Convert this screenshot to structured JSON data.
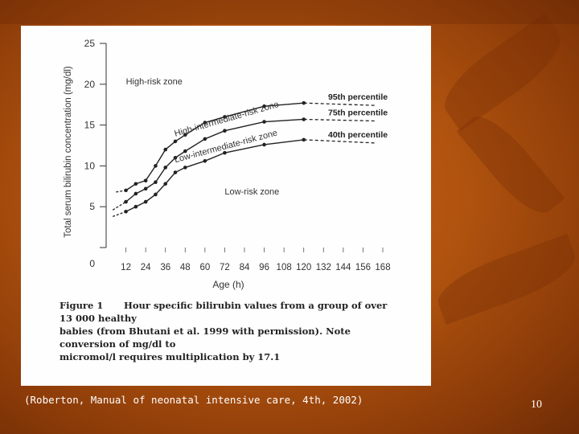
{
  "slide": {
    "citation": "(Roberton, Manual of neonatal intensive care, 4th, 2002)",
    "page_number": "10"
  },
  "figure": {
    "caption_label": "Figure 1",
    "caption_lines": [
      "Hour specific bilirubin values from a group of over 13 000 healthy",
      "babies (from Bhutani et al. 1999 with permission). Note conversion of mg/dl to",
      "micromol/l requires multiplication by 17.1"
    ]
  },
  "chart_data": {
    "type": "line",
    "title": "",
    "xlabel": "Age (h)",
    "ylabel": "Total serum bilirubin concentration (mg/dl)",
    "xlim": [
      0,
      168
    ],
    "ylim": [
      0,
      25
    ],
    "x_ticks": [
      12,
      24,
      36,
      48,
      60,
      72,
      84,
      96,
      108,
      120,
      132,
      144,
      156,
      168
    ],
    "x_tick_labels": [
      "12",
      "24",
      "36",
      "48",
      "60",
      "72",
      "84",
      "96",
      "108",
      "120",
      "132",
      "144",
      "156",
      "168"
    ],
    "y_ticks": [
      0,
      5,
      10,
      15,
      20,
      25
    ],
    "y_tick_labels": [
      "0",
      "5",
      "10",
      "15",
      "20",
      "25"
    ],
    "zone_labels": [
      {
        "text": "High-risk zone",
        "x": 12,
        "y": 20
      },
      {
        "text": "High-intermediate-risk zone",
        "x": 42,
        "y": 13.6,
        "angle": -16
      },
      {
        "text": "Low-intermediate-risk zone",
        "x": 42,
        "y": 10.4,
        "angle": -15
      },
      {
        "text": "Low-risk zone",
        "x": 72,
        "y": 6.5
      }
    ],
    "series": [
      {
        "name": "95th percentile",
        "x": [
          12,
          18,
          24,
          30,
          36,
          42,
          48,
          60,
          72,
          96,
          120
        ],
        "y": [
          7.0,
          7.8,
          8.2,
          10.0,
          12.0,
          13.0,
          13.8,
          15.3,
          16.0,
          17.3,
          17.7
        ],
        "dashed_x": [
          6,
          12
        ],
        "dashed_y": [
          6.8,
          7.0
        ],
        "extension_y": 17.4
      },
      {
        "name": "75th percentile",
        "x": [
          12,
          18,
          24,
          30,
          36,
          42,
          48,
          60,
          72,
          96,
          120
        ],
        "y": [
          5.6,
          6.6,
          7.2,
          8.0,
          9.8,
          11.0,
          11.8,
          13.3,
          14.3,
          15.4,
          15.7
        ],
        "dashed_x": [
          4,
          12
        ],
        "dashed_y": [
          4.6,
          5.6
        ],
        "extension_y": 15.5
      },
      {
        "name": "40th percentile",
        "x": [
          12,
          18,
          24,
          30,
          36,
          42,
          48,
          60,
          72,
          96,
          120
        ],
        "y": [
          4.4,
          5.0,
          5.6,
          6.5,
          7.8,
          9.2,
          9.8,
          10.6,
          11.6,
          12.6,
          13.2
        ],
        "dashed_x": [
          4,
          12
        ],
        "dashed_y": [
          3.8,
          4.4
        ],
        "extension_y": 12.8
      }
    ]
  }
}
